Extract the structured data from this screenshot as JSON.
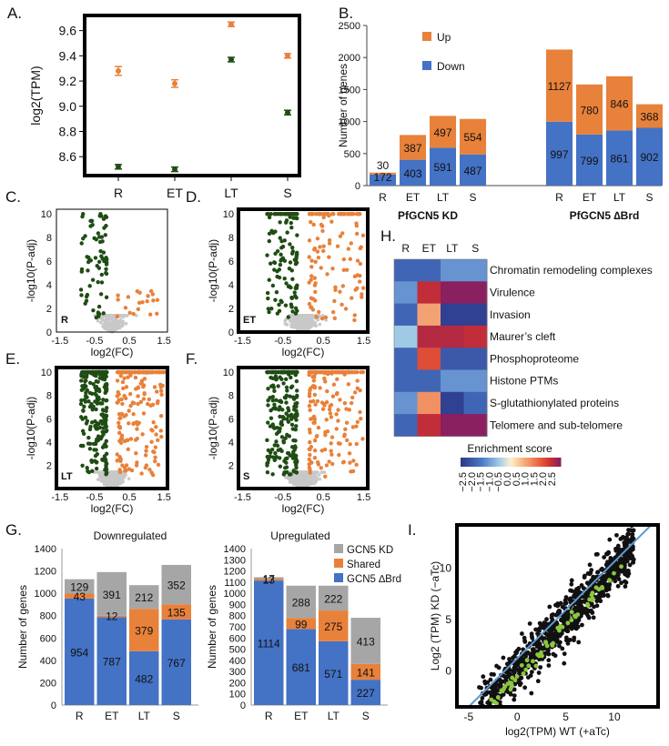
{
  "colors": {
    "orange": "#e8813a",
    "green": "#1f4d14",
    "blue": "#4472c4",
    "gray": "#a6a6a6",
    "lightgray": "#c8c8c8",
    "lime": "#8cc63f",
    "line": "#5b9bd5"
  },
  "panels": {
    "A": "A.",
    "B": "B.",
    "C": "C.",
    "D": "D.",
    "E": "E.",
    "F": "F.",
    "G": "G.",
    "H": "H.",
    "I": "I."
  },
  "chart_data": [
    {
      "panel": "A",
      "type": "scatter",
      "ylabel": "log2(TPM)",
      "categories": [
        "R",
        "ET",
        "LT",
        "S"
      ],
      "ylim": [
        8.45,
        9.72
      ],
      "yticks": [
        "8.6",
        "8.8",
        "9.0",
        "9.2",
        "9.4",
        "9.6"
      ],
      "series": [
        {
          "color": "orange",
          "values": [
            9.28,
            9.18,
            9.65,
            9.4
          ],
          "err": [
            0.035,
            0.03,
            0.012,
            0.012
          ]
        },
        {
          "color": "green",
          "values": [
            8.52,
            8.5,
            9.37,
            8.95
          ],
          "err": [
            0.015,
            0.01,
            0.008,
            0.008
          ]
        }
      ]
    },
    {
      "panel": "B",
      "type": "bar",
      "ylabel": "Number of genes",
      "ylim": [
        0,
        2500
      ],
      "yticks": [
        "0",
        "500",
        "1000",
        "1500",
        "2000",
        "2500"
      ],
      "legend": [
        {
          "name": "Up",
          "color": "orange"
        },
        {
          "name": "Down",
          "color": "blue"
        }
      ],
      "groups": [
        {
          "label": "PfGCN5 KD",
          "categories": [
            "R",
            "ET",
            "LT",
            "S"
          ],
          "down": [
            172,
            403,
            591,
            487
          ],
          "up": [
            30,
            387,
            497,
            554
          ]
        },
        {
          "label": "PfGCN5 ∆Brd",
          "categories": [
            "R",
            "ET",
            "LT",
            "S"
          ],
          "down": [
            997,
            799,
            861,
            902
          ],
          "up": [
            1127,
            780,
            846,
            368
          ]
        }
      ]
    },
    {
      "panel": "C",
      "type": "scatter",
      "tag": "R",
      "xlabel": "log2(FC)",
      "ylabel": "-log10(P-adj)",
      "xticks": [
        "-1.5",
        "-0.5",
        "0.5",
        "1.5"
      ],
      "yticks": [
        "0",
        "2",
        "4",
        "6",
        "8",
        "10"
      ]
    },
    {
      "panel": "D",
      "type": "scatter",
      "tag": "ET",
      "xlabel": "log2(FC)",
      "ylabel": "-log10(P-adj)",
      "xticks": [
        "-1.5",
        "-0.5",
        "0.5",
        "1.5"
      ],
      "yticks": [
        "0",
        "2",
        "4",
        "6",
        "8",
        "10"
      ]
    },
    {
      "panel": "E",
      "type": "scatter",
      "tag": "LT",
      "xlabel": "log2(FC)",
      "ylabel": "-log10(P-adj)",
      "xticks": [
        "-1.5",
        "-0.5",
        "0.5",
        "1.5"
      ],
      "yticks": [
        "2",
        "4",
        "6",
        "8",
        "10"
      ]
    },
    {
      "panel": "F",
      "type": "scatter",
      "tag": "S",
      "xlabel": "log2(FC)",
      "ylabel": "-log10(P-adj)",
      "xticks": [
        "-1.5",
        "-0.5",
        "0.5",
        "1.5"
      ],
      "yticks": [
        "2",
        "4",
        "6",
        "8",
        "10"
      ]
    },
    {
      "panel": "H",
      "type": "heatmap",
      "columns": [
        "R",
        "ET",
        "LT",
        "S"
      ],
      "rows": [
        "Chromatin remodeling complexes",
        "Virulence",
        "Invasion",
        "Maurer’s cleft",
        "Phosphoproteome",
        "Histone PTMs",
        "S-glutathionylated proteins",
        "Telomere and sub-telomere"
      ],
      "values": [
        [
          -1.8,
          -1.8,
          -1.2,
          -1.2
        ],
        [
          -1.2,
          2.1,
          2.6,
          2.6
        ],
        [
          -1.8,
          0.8,
          -2.4,
          -2.4
        ],
        [
          -0.6,
          2.2,
          2.2,
          2.1
        ],
        [
          -1.8,
          1.7,
          -2.0,
          -2.0
        ],
        [
          -1.8,
          -1.8,
          -1.2,
          -1.2
        ],
        [
          -1.2,
          1.0,
          -2.4,
          -1.8
        ],
        [
          -1.8,
          2.1,
          2.6,
          2.6
        ]
      ],
      "colorbar_title": "Enrichment score",
      "colorbar_ticks": [
        "−2.5",
        "−2.0",
        "−1.5",
        "−1.0",
        "−0.5",
        "0.0",
        "0.5",
        "1.0",
        "1.5",
        "2.0",
        "2.5"
      ]
    },
    {
      "panel": "G1",
      "type": "bar",
      "title": "Downregulated",
      "ylabel": "Number of genes",
      "ylim": [
        0,
        1400
      ],
      "yticks": [
        "0",
        "200",
        "400",
        "600",
        "800",
        "1000",
        "1200",
        "1400"
      ],
      "categories": [
        "R",
        "ET",
        "LT",
        "S"
      ],
      "blue": [
        954,
        787,
        482,
        767
      ],
      "orange": [
        43,
        12,
        379,
        135
      ],
      "gray": [
        129,
        391,
        212,
        352
      ]
    },
    {
      "panel": "G2",
      "type": "bar",
      "title": "Upregulated",
      "ylabel": "Number of genes",
      "ylim": [
        0,
        1400
      ],
      "yticks": [
        "0",
        "100",
        "200",
        "300",
        "400",
        "500",
        "600",
        "700",
        "800",
        "900",
        "1000",
        "1100",
        "1200",
        "1300",
        "1400"
      ],
      "categories": [
        "R",
        "ET",
        "LT",
        "S"
      ],
      "blue": [
        1114,
        681,
        571,
        227
      ],
      "orange": [
        13,
        99,
        275,
        141
      ],
      "gray": [
        17,
        288,
        222,
        413
      ],
      "legend": [
        {
          "name": "GCN5 KD",
          "color": "gray"
        },
        {
          "name": "Shared",
          "color": "orange"
        },
        {
          "name": "GCN5 ∆Brd",
          "color": "blue"
        }
      ]
    },
    {
      "panel": "I",
      "type": "scatter",
      "xlabel": "log2(TPM) WT (+aTc)",
      "ylabel": "Log2 (TPM) KD (−aTc)",
      "xticks": [
        "-5",
        "0",
        "5",
        "10"
      ],
      "yticks": [
        "0",
        "5",
        "10"
      ]
    }
  ]
}
